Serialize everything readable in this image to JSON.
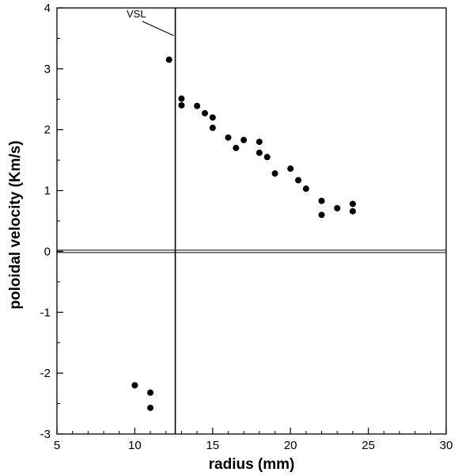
{
  "chart_data": {
    "type": "scatter",
    "xlabel": "radius (mm)",
    "ylabel": "poloidal velocity (Km/s)",
    "xlim": [
      5,
      30
    ],
    "ylim": [
      -3,
      4
    ],
    "xticks": [
      5,
      10,
      15,
      20,
      25,
      30
    ],
    "yticks": [
      -3,
      -2,
      -1,
      0,
      1,
      2,
      3,
      4
    ],
    "grid": false,
    "legend": "none",
    "reference_lines": {
      "vertical_x": 12.6,
      "horizontal_y": 0
    },
    "annotation": {
      "text": "VSL",
      "points_to_x": 12.6
    },
    "series": [
      {
        "color": "#000000",
        "points": [
          [
            10,
            -2.2
          ],
          [
            11,
            -2.32
          ],
          [
            11,
            -2.57
          ],
          [
            12.2,
            3.15
          ],
          [
            13,
            2.51
          ],
          [
            13,
            2.4
          ],
          [
            14,
            2.39
          ],
          [
            14.5,
            2.27
          ],
          [
            15,
            2.2
          ],
          [
            15,
            2.03
          ],
          [
            16,
            1.87
          ],
          [
            16.5,
            1.7
          ],
          [
            17,
            1.83
          ],
          [
            18,
            1.8
          ],
          [
            18,
            1.62
          ],
          [
            18.5,
            1.55
          ],
          [
            19,
            1.28
          ],
          [
            20,
            1.36
          ],
          [
            20.5,
            1.17
          ],
          [
            21,
            1.03
          ],
          [
            22,
            0.83
          ],
          [
            22,
            0.6
          ],
          [
            23,
            0.71
          ],
          [
            24,
            0.78
          ],
          [
            24,
            0.66
          ]
        ]
      }
    ]
  }
}
